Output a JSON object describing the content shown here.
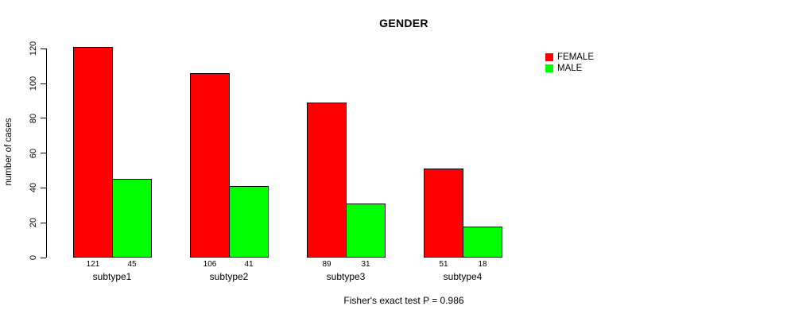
{
  "chart_data": {
    "type": "bar",
    "title": "GENDER",
    "categories": [
      "subtype1",
      "subtype2",
      "subtype3",
      "subtype4"
    ],
    "series": [
      {
        "name": "FEMALE",
        "color": "#FF0000",
        "values": [
          121,
          106,
          89,
          51
        ]
      },
      {
        "name": "MALE",
        "color": "#00FF00",
        "values": [
          45,
          41,
          31,
          18
        ]
      }
    ],
    "ylabel": "number of cases",
    "xlabel": "",
    "yticks": [
      0,
      20,
      40,
      60,
      80,
      100,
      120
    ],
    "ylim": [
      0,
      120
    ],
    "bar_value_labels": true,
    "bar_border_color": "#000000",
    "legend_position": "top-right",
    "annotation": "Fisher's exact test P = 0.986",
    "grid": false,
    "background": "#FFFFFF"
  }
}
